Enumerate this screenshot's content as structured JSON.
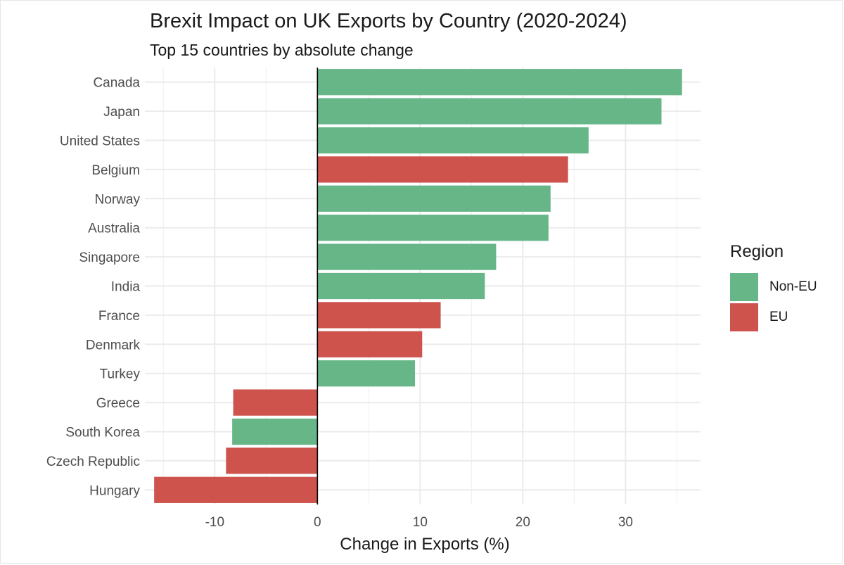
{
  "chart_data": {
    "type": "bar",
    "orientation": "horizontal",
    "title": "Brexit Impact on UK Exports by Country (2020-2024)",
    "subtitle": "Top 15 countries by absolute change",
    "xlabel": "Change in Exports (%)",
    "ylabel": "",
    "xlim": [
      -16.8,
      37.3
    ],
    "xticks": [
      -10,
      0,
      10,
      20,
      30
    ],
    "xtick_labels": [
      "-10",
      "0",
      "10",
      "20",
      "30"
    ],
    "grid": true,
    "legend": {
      "title": "Region",
      "position": "right",
      "entries": [
        {
          "label": "Non-EU",
          "color": "#67b688"
        },
        {
          "label": "EU",
          "color": "#cd534c"
        }
      ]
    },
    "categories": [
      "Canada",
      "Japan",
      "United States",
      "Belgium",
      "Norway",
      "Australia",
      "Singapore",
      "India",
      "France",
      "Denmark",
      "Turkey",
      "Greece",
      "South Korea",
      "Czech Republic",
      "Hungary"
    ],
    "values": [
      35.5,
      33.5,
      26.4,
      24.4,
      22.7,
      22.5,
      17.4,
      16.3,
      12.0,
      10.2,
      9.5,
      -8.2,
      -8.3,
      -8.9,
      -15.9
    ],
    "region": [
      "Non-EU",
      "Non-EU",
      "Non-EU",
      "EU",
      "Non-EU",
      "Non-EU",
      "Non-EU",
      "Non-EU",
      "EU",
      "EU",
      "Non-EU",
      "EU",
      "Non-EU",
      "EU",
      "EU"
    ]
  }
}
